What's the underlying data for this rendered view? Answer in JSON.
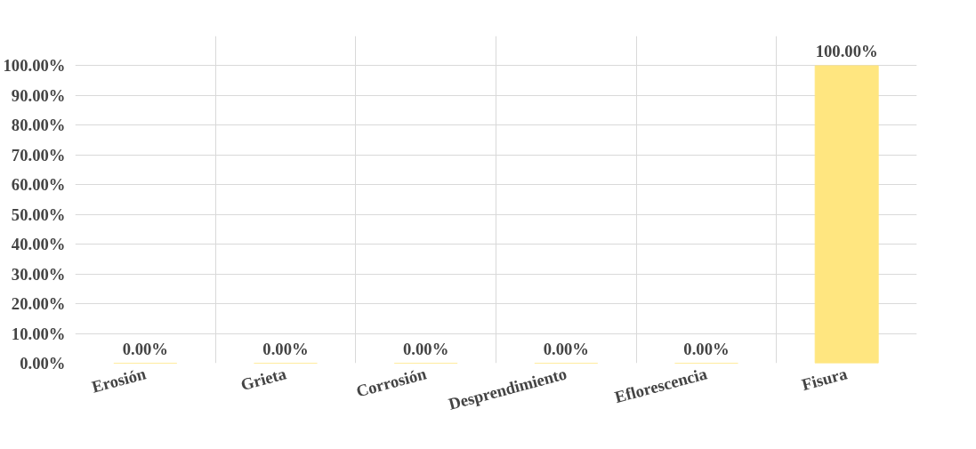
{
  "chart_data": {
    "type": "bar",
    "categories": [
      "Erosión",
      "Grieta",
      "Corrosión",
      "Desprendimiento",
      "Eflorescencia",
      "Fisura"
    ],
    "values": [
      0,
      0,
      0,
      0,
      0,
      100
    ],
    "value_labels": [
      "0.00%",
      "0.00%",
      "0.00%",
      "0.00%",
      "0.00%",
      "100.00%"
    ],
    "color": "#ffe680",
    "ylim": [
      0,
      100
    ],
    "yticks": [
      {
        "value": 0,
        "label": "0.00%"
      },
      {
        "value": 10,
        "label": "10.00%"
      },
      {
        "value": 20,
        "label": "20.00%"
      },
      {
        "value": 30,
        "label": "30.00%"
      },
      {
        "value": 40,
        "label": "40.00%"
      },
      {
        "value": 50,
        "label": "50.00%"
      },
      {
        "value": 60,
        "label": "60.00%"
      },
      {
        "value": 70,
        "label": "70.00%"
      },
      {
        "value": 80,
        "label": "80.00%"
      },
      {
        "value": 90,
        "label": "90.00%"
      },
      {
        "value": 100,
        "label": "100.00%"
      }
    ],
    "grid": true
  }
}
